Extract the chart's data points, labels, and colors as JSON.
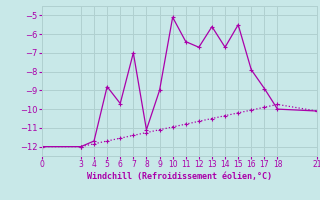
{
  "xlabel": "Windchill (Refroidissement éolien,°C)",
  "background_color": "#c8e8e8",
  "grid_color": "#b0d0d0",
  "line_color": "#aa00aa",
  "x_jagged": [
    0,
    3,
    4,
    5,
    6,
    7,
    8,
    9,
    10,
    11,
    12,
    13,
    14,
    15,
    16,
    17,
    18,
    21
  ],
  "y_jagged": [
    -12,
    -12,
    -11.7,
    -8.8,
    -9.7,
    -7.0,
    -11.1,
    -9.0,
    -5.1,
    -6.4,
    -6.7,
    -5.6,
    -6.7,
    -5.5,
    -7.9,
    -8.9,
    -10.0,
    -10.1
  ],
  "x_trend": [
    0,
    3,
    4,
    5,
    6,
    7,
    8,
    9,
    10,
    11,
    12,
    13,
    14,
    15,
    16,
    17,
    18,
    21
  ],
  "y_trend": [
    -12,
    -12,
    -11.85,
    -11.7,
    -11.55,
    -11.4,
    -11.25,
    -11.1,
    -10.95,
    -10.8,
    -10.65,
    -10.5,
    -10.35,
    -10.2,
    -10.05,
    -9.9,
    -9.75,
    -10.1
  ],
  "xlim": [
    0,
    21
  ],
  "ylim": [
    -12.5,
    -4.5
  ],
  "yticks": [
    -12,
    -11,
    -10,
    -9,
    -8,
    -7,
    -6,
    -5
  ],
  "xticks": [
    0,
    3,
    4,
    5,
    6,
    7,
    8,
    9,
    10,
    11,
    12,
    13,
    14,
    15,
    16,
    17,
    18,
    21
  ],
  "figsize": [
    3.2,
    2.0
  ],
  "dpi": 100
}
